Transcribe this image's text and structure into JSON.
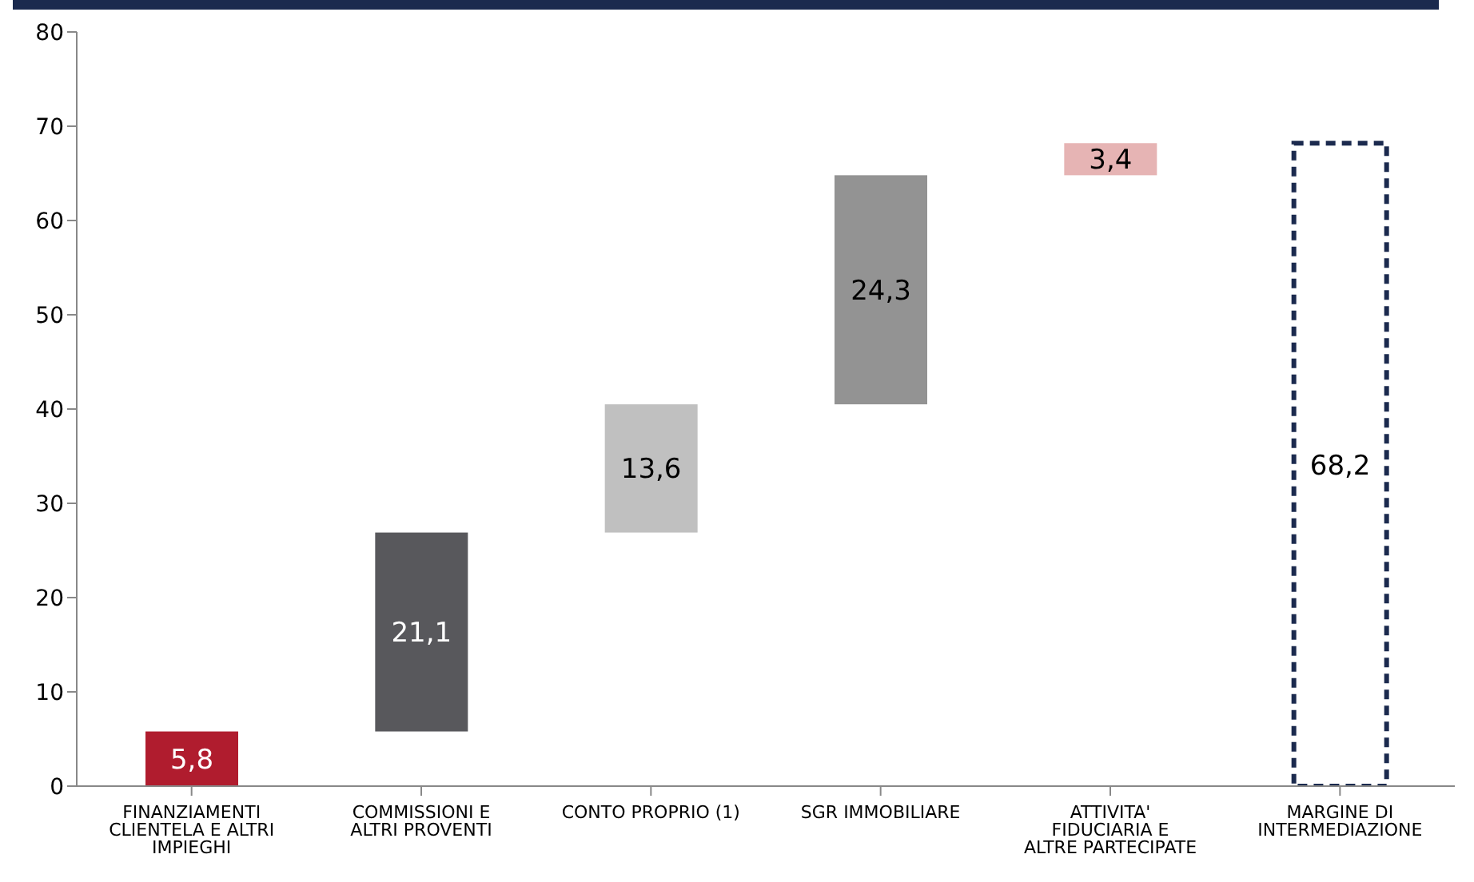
{
  "chart_data": {
    "type": "bar",
    "categories": [
      "FINANZIAMENTI CLIENTELA E ALTRI IMPIEGHI",
      "COMMISSIONI E ALTRI PROVENTI",
      "CONTO PROPRIO (1)",
      "SGR IMMOBILIARE",
      "ATTIVITA' FIDUCIARIA E ALTRE PARTECIPATE",
      "MARGINE DI INTERMEDIAZIONE"
    ],
    "series": [
      {
        "base": [
          0,
          5.8,
          26.9,
          40.5,
          64.8,
          null
        ],
        "values": [
          5.8,
          21.1,
          13.6,
          24.3,
          3.4,
          null
        ],
        "colors": [
          "#b01c2e",
          "#58585c",
          "#c0c0c0",
          "#939393",
          "#e6b4b4",
          null
        ],
        "value_labels": [
          "5,8",
          "21,1",
          "13,6",
          "24,3",
          "3,4",
          null
        ]
      },
      {
        "base": [
          null,
          null,
          null,
          null,
          null,
          0
        ],
        "values": [
          null,
          null,
          null,
          null,
          null,
          68.2
        ],
        "color": "#ffffff",
        "line_style": "dashed",
        "value_labels": [
          null,
          null,
          null,
          null,
          null,
          "68,2"
        ]
      }
    ],
    "ylim": [
      0,
      80
    ],
    "yticks": [
      0,
      10,
      20,
      30,
      40,
      50,
      60,
      70,
      80
    ]
  }
}
